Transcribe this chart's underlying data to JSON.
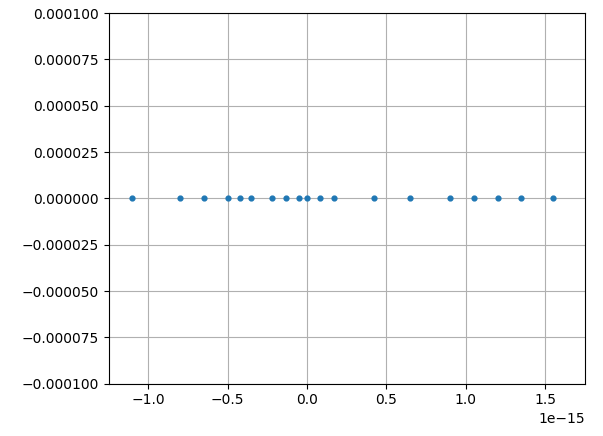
{
  "x_values": [
    -1.1e-15,
    -8e-16,
    -6.5e-16,
    -5e-16,
    -4.2e-16,
    -3.5e-16,
    -2.2e-16,
    -1.3e-16,
    -5e-17,
    0.0,
    8e-17,
    1.7e-16,
    4.2e-16,
    6.5e-16,
    9e-16,
    1.05e-15,
    1.2e-15,
    1.35e-15,
    1.55e-15
  ],
  "y_values": [
    0,
    0,
    0,
    0,
    0,
    0,
    0,
    0,
    0,
    0,
    0,
    0,
    0,
    0,
    0,
    0,
    0,
    0,
    0
  ],
  "dot_color": "#1f77b4",
  "dot_size": 12,
  "xlim": [
    -1.25e-15,
    1.75e-15
  ],
  "ylim": [
    -0.0001,
    0.0001
  ],
  "yticks": [
    -0.0001,
    -7.5e-05,
    -5e-05,
    -2.5e-05,
    0,
    2.5e-05,
    5e-05,
    7.5e-05,
    0.0001
  ],
  "xticks": [
    -1e-15,
    -5e-16,
    0.0,
    5e-16,
    1e-15,
    1.5e-15
  ],
  "grid_color": "#b0b0b0",
  "figsize": [
    6.03,
    4.36
  ],
  "dpi": 100,
  "bg_color": "#ffffff"
}
